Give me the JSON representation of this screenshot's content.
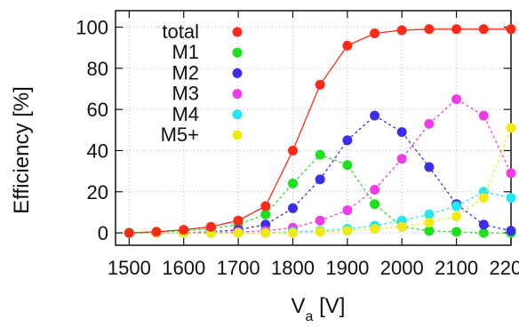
{
  "chart_data": {
    "type": "line",
    "title": "",
    "xlabel_main": "V",
    "xlabel_sub": "a",
    "xlabel_unit": " [V]",
    "ylabel": "Efficiency [%]",
    "xlim": [
      1475,
      2200
    ],
    "ylim": [
      -6,
      108
    ],
    "xticks": [
      1500,
      1600,
      1700,
      1800,
      1900,
      2000,
      2100,
      2200
    ],
    "xtick_labels": [
      "1500",
      "1600",
      "1700",
      "1800",
      "1900",
      "2000",
      "2100",
      "2200"
    ],
    "yticks": [
      0,
      20,
      40,
      60,
      80,
      100
    ],
    "ytick_labels": [
      "0",
      "20",
      "40",
      "60",
      "80",
      "100"
    ],
    "grid": true,
    "legend_position": "top-left",
    "series": [
      {
        "name": "total",
        "color": "#ff2a1a",
        "line": "solid",
        "points": [
          [
            1500,
            0
          ],
          [
            1550,
            0.5
          ],
          [
            1600,
            1.5
          ],
          [
            1650,
            3
          ],
          [
            1700,
            6
          ],
          [
            1750,
            13
          ],
          [
            1800,
            40
          ],
          [
            1850,
            72
          ],
          [
            1900,
            91
          ],
          [
            1950,
            97
          ],
          [
            2000,
            98.5
          ],
          [
            2050,
            99
          ],
          [
            2100,
            99
          ],
          [
            2150,
            99
          ],
          [
            2200,
            99
          ]
        ]
      },
      {
        "name": "M1",
        "color": "#1ee11e",
        "line": "dashed",
        "points": [
          [
            1500,
            0
          ],
          [
            1550,
            0.5
          ],
          [
            1600,
            1
          ],
          [
            1650,
            2
          ],
          [
            1700,
            4
          ],
          [
            1750,
            9
          ],
          [
            1800,
            24
          ],
          [
            1850,
            38
          ],
          [
            1900,
            33
          ],
          [
            1950,
            14
          ],
          [
            2000,
            3
          ],
          [
            2050,
            1
          ],
          [
            2100,
            0.5
          ],
          [
            2150,
            0
          ],
          [
            2200,
            0
          ]
        ]
      },
      {
        "name": "M2",
        "color": "#3a2ee6",
        "line": "dashed",
        "points": [
          [
            1500,
            0
          ],
          [
            1550,
            0
          ],
          [
            1600,
            0
          ],
          [
            1650,
            0.5
          ],
          [
            1700,
            1.5
          ],
          [
            1750,
            4
          ],
          [
            1800,
            12
          ],
          [
            1850,
            26
          ],
          [
            1900,
            45
          ],
          [
            1950,
            57
          ],
          [
            2000,
            49
          ],
          [
            2050,
            32
          ],
          [
            2100,
            14
          ],
          [
            2150,
            4
          ],
          [
            2200,
            1
          ]
        ]
      },
      {
        "name": "M3",
        "color": "#f03ce8",
        "line": "dashed",
        "points": [
          [
            1500,
            0
          ],
          [
            1550,
            0
          ],
          [
            1600,
            0
          ],
          [
            1650,
            0
          ],
          [
            1700,
            0.5
          ],
          [
            1750,
            1
          ],
          [
            1800,
            2.5
          ],
          [
            1850,
            6
          ],
          [
            1900,
            11
          ],
          [
            1950,
            21
          ],
          [
            2000,
            36
          ],
          [
            2050,
            53
          ],
          [
            2100,
            65
          ],
          [
            2150,
            57
          ],
          [
            2200,
            29
          ]
        ]
      },
      {
        "name": "M4",
        "color": "#22e8f2",
        "line": "dashed",
        "points": [
          [
            1500,
            0
          ],
          [
            1550,
            0
          ],
          [
            1600,
            0
          ],
          [
            1650,
            0
          ],
          [
            1700,
            0
          ],
          [
            1750,
            0
          ],
          [
            1800,
            0.5
          ],
          [
            1850,
            1
          ],
          [
            1900,
            2
          ],
          [
            1950,
            3.5
          ],
          [
            2000,
            6
          ],
          [
            2050,
            9
          ],
          [
            2100,
            13
          ],
          [
            2150,
            20
          ],
          [
            2200,
            17
          ]
        ]
      },
      {
        "name": "M5+",
        "color": "#f0ea14",
        "line": "dashed",
        "points": [
          [
            1500,
            0
          ],
          [
            1550,
            0
          ],
          [
            1600,
            0
          ],
          [
            1650,
            0
          ],
          [
            1700,
            0
          ],
          [
            1750,
            0
          ],
          [
            1800,
            0
          ],
          [
            1850,
            0.5
          ],
          [
            1900,
            1
          ],
          [
            1950,
            2
          ],
          [
            2000,
            3
          ],
          [
            2050,
            5
          ],
          [
            2100,
            8
          ],
          [
            2150,
            17
          ],
          [
            2200,
            51
          ]
        ]
      }
    ]
  }
}
